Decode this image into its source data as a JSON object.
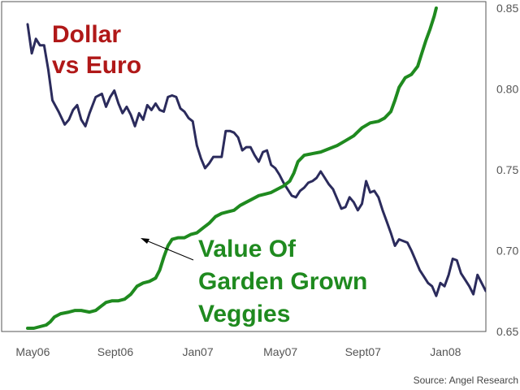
{
  "chart_data": {
    "type": "line",
    "title_lines": [
      "Dollar",
      "vs Euro"
    ],
    "annotation_lines": [
      "Value Of",
      "Garden Grown",
      "Veggies"
    ],
    "source": "Source: Angel Research",
    "x_ticks": [
      "May06",
      "Sept06",
      "Jan07",
      "May07",
      "Sept07",
      "Jan08"
    ],
    "y_ticks": [
      "0.85",
      "0.80",
      "0.75",
      "0.70",
      "0.65"
    ],
    "y_tick_values": [
      0.85,
      0.8,
      0.75,
      0.7,
      0.65
    ],
    "ylim": [
      0.65,
      0.85
    ],
    "xlim": [
      0,
      23.5
    ],
    "series": [
      {
        "color": "#2b2b5c",
        "points": [
          [
            0.0,
            0.84
          ],
          [
            0.2,
            0.822
          ],
          [
            0.4,
            0.831
          ],
          [
            0.6,
            0.827
          ],
          [
            0.8,
            0.827
          ],
          [
            1.0,
            0.812
          ],
          [
            1.2,
            0.793
          ],
          [
            1.5,
            0.786
          ],
          [
            1.8,
            0.778
          ],
          [
            2.0,
            0.781
          ],
          [
            2.2,
            0.787
          ],
          [
            2.4,
            0.79
          ],
          [
            2.6,
            0.781
          ],
          [
            2.8,
            0.777
          ],
          [
            3.0,
            0.785
          ],
          [
            3.3,
            0.795
          ],
          [
            3.6,
            0.797
          ],
          [
            3.8,
            0.789
          ],
          [
            4.0,
            0.795
          ],
          [
            4.2,
            0.799
          ],
          [
            4.4,
            0.791
          ],
          [
            4.6,
            0.785
          ],
          [
            4.8,
            0.789
          ],
          [
            5.0,
            0.784
          ],
          [
            5.2,
            0.777
          ],
          [
            5.4,
            0.785
          ],
          [
            5.6,
            0.781
          ],
          [
            5.8,
            0.79
          ],
          [
            6.0,
            0.787
          ],
          [
            6.2,
            0.791
          ],
          [
            6.4,
            0.787
          ],
          [
            6.6,
            0.786
          ],
          [
            6.8,
            0.795
          ],
          [
            7.0,
            0.796
          ],
          [
            7.2,
            0.795
          ],
          [
            7.4,
            0.788
          ],
          [
            7.6,
            0.786
          ],
          [
            7.8,
            0.782
          ],
          [
            8.0,
            0.78
          ],
          [
            8.2,
            0.765
          ],
          [
            8.4,
            0.757
          ],
          [
            8.6,
            0.751
          ],
          [
            8.8,
            0.754
          ],
          [
            9.0,
            0.758
          ],
          [
            9.2,
            0.758
          ],
          [
            9.4,
            0.758
          ],
          [
            9.6,
            0.774
          ],
          [
            9.8,
            0.774
          ],
          [
            10.0,
            0.773
          ],
          [
            10.2,
            0.77
          ],
          [
            10.4,
            0.762
          ],
          [
            10.6,
            0.764
          ],
          [
            10.8,
            0.764
          ],
          [
            11.0,
            0.759
          ],
          [
            11.2,
            0.755
          ],
          [
            11.4,
            0.761
          ],
          [
            11.6,
            0.762
          ],
          [
            11.8,
            0.753
          ],
          [
            12.0,
            0.751
          ],
          [
            12.2,
            0.747
          ],
          [
            12.4,
            0.742
          ],
          [
            12.6,
            0.738
          ],
          [
            12.8,
            0.734
          ],
          [
            13.0,
            0.733
          ],
          [
            13.2,
            0.737
          ],
          [
            13.4,
            0.739
          ],
          [
            13.6,
            0.742
          ],
          [
            13.8,
            0.743
          ],
          [
            14.0,
            0.745
          ],
          [
            14.2,
            0.749
          ],
          [
            14.4,
            0.745
          ],
          [
            14.6,
            0.741
          ],
          [
            14.8,
            0.738
          ],
          [
            15.0,
            0.732
          ],
          [
            15.2,
            0.726
          ],
          [
            15.4,
            0.727
          ],
          [
            15.6,
            0.733
          ],
          [
            15.8,
            0.73
          ],
          [
            16.0,
            0.725
          ],
          [
            16.2,
            0.729
          ],
          [
            16.4,
            0.743
          ],
          [
            16.6,
            0.736
          ],
          [
            16.8,
            0.737
          ],
          [
            17.0,
            0.733
          ],
          [
            17.2,
            0.725
          ],
          [
            17.4,
            0.718
          ],
          [
            17.6,
            0.711
          ],
          [
            17.8,
            0.703
          ],
          [
            18.0,
            0.707
          ],
          [
            18.2,
            0.706
          ],
          [
            18.4,
            0.705
          ],
          [
            18.6,
            0.7
          ],
          [
            18.8,
            0.694
          ],
          [
            19.0,
            0.688
          ],
          [
            19.2,
            0.684
          ],
          [
            19.4,
            0.68
          ],
          [
            19.6,
            0.678
          ],
          [
            19.8,
            0.672
          ],
          [
            20.0,
            0.68
          ],
          [
            20.2,
            0.678
          ],
          [
            20.4,
            0.685
          ],
          [
            20.6,
            0.695
          ],
          [
            20.8,
            0.694
          ],
          [
            21.0,
            0.686
          ],
          [
            21.2,
            0.682
          ],
          [
            21.4,
            0.678
          ],
          [
            21.6,
            0.673
          ],
          [
            21.8,
            0.685
          ],
          [
            22.0,
            0.68
          ],
          [
            22.2,
            0.675
          ],
          [
            22.4,
            0.679
          ],
          [
            22.6,
            0.69
          ],
          [
            22.8,
            0.683
          ],
          [
            23.0,
            0.677
          ],
          [
            23.2,
            0.668
          ],
          [
            23.3,
            0.657
          ]
        ]
      },
      {
        "color": "#1f8a1f",
        "points": [
          [
            0.0,
            0.652
          ],
          [
            0.3,
            0.652
          ],
          [
            0.6,
            0.653
          ],
          [
            0.9,
            0.654
          ],
          [
            1.1,
            0.656
          ],
          [
            1.3,
            0.659
          ],
          [
            1.6,
            0.661
          ],
          [
            2.0,
            0.662
          ],
          [
            2.3,
            0.663
          ],
          [
            2.6,
            0.663
          ],
          [
            3.0,
            0.662
          ],
          [
            3.3,
            0.663
          ],
          [
            3.5,
            0.665
          ],
          [
            3.8,
            0.668
          ],
          [
            4.1,
            0.669
          ],
          [
            4.4,
            0.669
          ],
          [
            4.7,
            0.67
          ],
          [
            5.0,
            0.673
          ],
          [
            5.3,
            0.678
          ],
          [
            5.6,
            0.68
          ],
          [
            5.9,
            0.681
          ],
          [
            6.2,
            0.683
          ],
          [
            6.4,
            0.688
          ],
          [
            6.6,
            0.696
          ],
          [
            6.8,
            0.703
          ],
          [
            7.0,
            0.707
          ],
          [
            7.3,
            0.708
          ],
          [
            7.6,
            0.708
          ],
          [
            7.9,
            0.71
          ],
          [
            8.2,
            0.711
          ],
          [
            8.5,
            0.714
          ],
          [
            8.8,
            0.717
          ],
          [
            9.1,
            0.721
          ],
          [
            9.4,
            0.723
          ],
          [
            9.7,
            0.724
          ],
          [
            10.0,
            0.725
          ],
          [
            10.3,
            0.728
          ],
          [
            10.6,
            0.73
          ],
          [
            10.9,
            0.732
          ],
          [
            11.2,
            0.734
          ],
          [
            11.5,
            0.735
          ],
          [
            11.8,
            0.736
          ],
          [
            12.1,
            0.738
          ],
          [
            12.4,
            0.74
          ],
          [
            12.7,
            0.743
          ],
          [
            12.9,
            0.748
          ],
          [
            13.1,
            0.755
          ],
          [
            13.4,
            0.759
          ],
          [
            13.8,
            0.76
          ],
          [
            14.2,
            0.761
          ],
          [
            14.6,
            0.763
          ],
          [
            15.0,
            0.765
          ],
          [
            15.4,
            0.768
          ],
          [
            15.8,
            0.771
          ],
          [
            16.2,
            0.776
          ],
          [
            16.6,
            0.779
          ],
          [
            17.0,
            0.78
          ],
          [
            17.3,
            0.782
          ],
          [
            17.6,
            0.786
          ],
          [
            17.8,
            0.793
          ],
          [
            18.0,
            0.801
          ],
          [
            18.3,
            0.807
          ],
          [
            18.6,
            0.809
          ],
          [
            18.9,
            0.814
          ],
          [
            19.1,
            0.822
          ],
          [
            19.3,
            0.83
          ],
          [
            19.5,
            0.837
          ],
          [
            19.7,
            0.845
          ],
          [
            19.8,
            0.85
          ]
        ]
      }
    ],
    "grid": false,
    "y_axis_side": "right"
  }
}
